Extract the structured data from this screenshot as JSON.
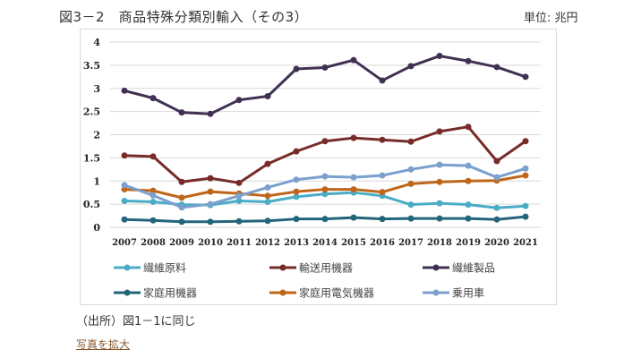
{
  "header": {
    "title": "図3－2　商品特殊分類別輸入（その3）",
    "unit": "単位: 兆円"
  },
  "footer": {
    "source": "（出所）図1－1に同じ",
    "enlarge_link": "写真を拡大"
  },
  "chart_data": {
    "type": "line",
    "title": "図3－2　商品特殊分類別輸入（その3）",
    "xlabel": "",
    "ylabel": "単位: 兆円",
    "ylim": [
      0,
      4
    ],
    "yticks": [
      0,
      0.5,
      1,
      1.5,
      2,
      2.5,
      3,
      3.5,
      4
    ],
    "ytick_labels": [
      "0",
      "0.5",
      "1",
      "1.5",
      "2",
      "2.5",
      "3",
      "3.5",
      "4"
    ],
    "grid": true,
    "legend_position": "bottom",
    "categories": [
      "2007",
      "2008",
      "2009",
      "2010",
      "2011",
      "2012",
      "2013",
      "2014",
      "2015",
      "2016",
      "2017",
      "2018",
      "2019",
      "2020",
      "2021"
    ],
    "series": [
      {
        "name": "繊維原料",
        "color": "#4BACC6",
        "values": [
          0.57,
          0.55,
          0.49,
          0.48,
          0.57,
          0.55,
          0.66,
          0.72,
          0.75,
          0.68,
          0.49,
          0.52,
          0.49,
          0.42,
          0.46
        ]
      },
      {
        "name": "輸送用機器",
        "color": "#772C2A",
        "values": [
          1.55,
          1.53,
          0.98,
          1.06,
          0.96,
          1.37,
          1.64,
          1.86,
          1.93,
          1.89,
          1.85,
          2.07,
          2.17,
          1.43,
          1.86
        ]
      },
      {
        "name": "繊維製品",
        "color": "#403152",
        "values": [
          2.95,
          2.79,
          2.48,
          2.45,
          2.75,
          2.83,
          3.42,
          3.45,
          3.61,
          3.17,
          3.48,
          3.7,
          3.59,
          3.46,
          3.25
        ]
      },
      {
        "name": "家庭用機器",
        "color": "#23667A",
        "values": [
          0.17,
          0.15,
          0.12,
          0.12,
          0.13,
          0.14,
          0.18,
          0.18,
          0.21,
          0.18,
          0.19,
          0.19,
          0.19,
          0.17,
          0.23
        ]
      },
      {
        "name": "家庭用電気機器",
        "color": "#C0661B",
        "values": [
          0.82,
          0.79,
          0.64,
          0.77,
          0.73,
          0.68,
          0.77,
          0.82,
          0.82,
          0.76,
          0.94,
          0.98,
          1.0,
          1.01,
          1.12
        ]
      },
      {
        "name": "乗用車",
        "color": "#7BA0CD",
        "values": [
          0.91,
          0.69,
          0.43,
          0.5,
          0.68,
          0.86,
          1.03,
          1.1,
          1.08,
          1.12,
          1.25,
          1.35,
          1.33,
          1.08,
          1.27
        ]
      }
    ]
  }
}
